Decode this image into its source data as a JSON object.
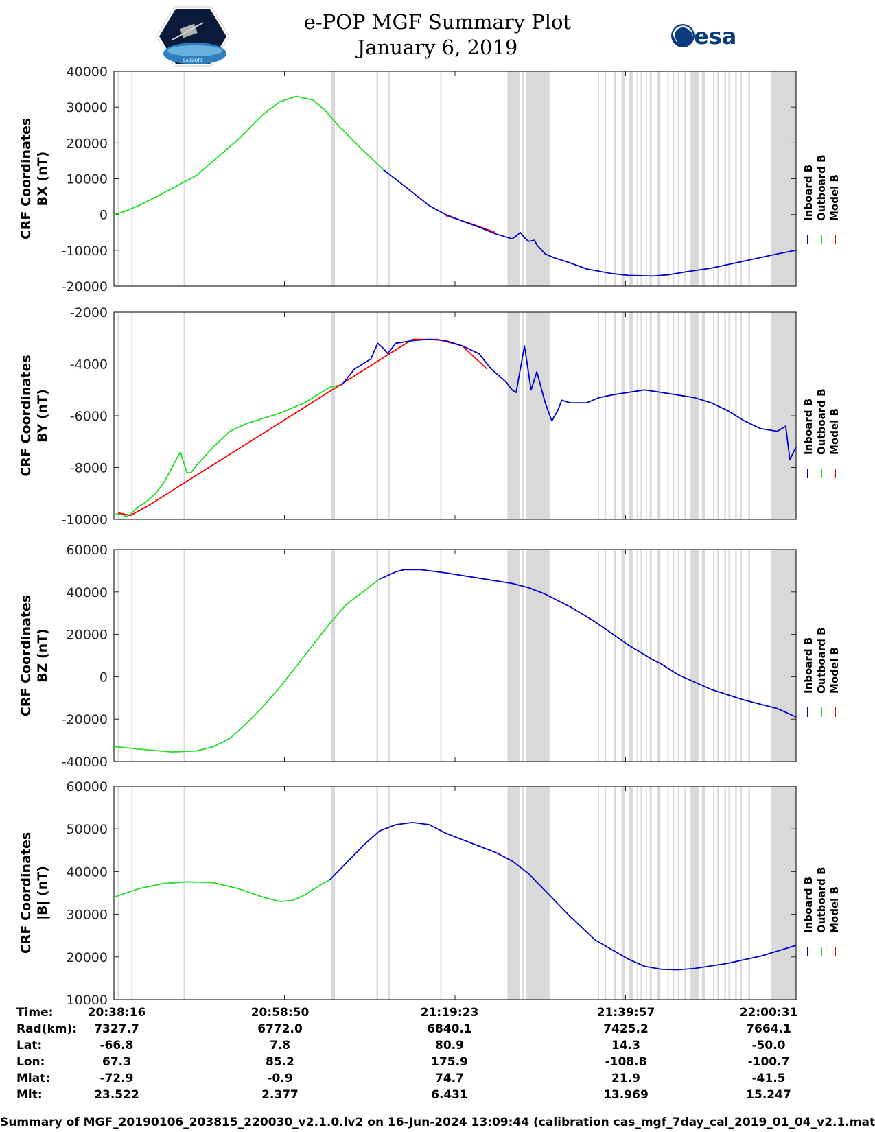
{
  "header": {
    "title_line1": "e-POP MGF Summary Plot",
    "title_line2": "January 6, 2019",
    "logo_left_text": "CASSIOPE",
    "logo_right_text": "esa"
  },
  "legend": [
    "Inboard B",
    "Outboard B",
    "Model B"
  ],
  "colors": {
    "inboard": "#0000cc",
    "outboard": "#22dd22",
    "model": "#ff0000",
    "gap": "#d9d9d9"
  },
  "chart_data": [
    {
      "type": "line",
      "ylabel_line1": "CRF Coordinates",
      "ylabel_line2": "BX (nT)",
      "ylim": [
        -20000,
        40000
      ],
      "yticks": [
        "40000",
        "30000",
        "20000",
        "10000",
        "0",
        "-10000",
        "-20000"
      ],
      "xlim_minutes": [
        0,
        82.25
      ],
      "series": [
        {
          "name": "Outboard B",
          "x": [
            0,
            1,
            3,
            5,
            8,
            10,
            12,
            15,
            18,
            20,
            22,
            24,
            25.5,
            27,
            30,
            32.5
          ],
          "y": [
            0,
            600,
            2500,
            4800,
            8500,
            11000,
            15000,
            21000,
            28000,
            31500,
            33000,
            32000,
            29000,
            25000,
            18000,
            12500
          ]
        },
        {
          "name": "Inboard B",
          "x": [
            32.5,
            35,
            38,
            40,
            42,
            44,
            46,
            48,
            48.5,
            49,
            49.5,
            50,
            50.7,
            51,
            52,
            53,
            55,
            57,
            60,
            62,
            65,
            67,
            69,
            72,
            75,
            78,
            80,
            82.25
          ],
          "y": [
            12500,
            8000,
            2500,
            0,
            -1800,
            -3500,
            -5400,
            -6800,
            -6000,
            -5000,
            -6500,
            -7500,
            -7200,
            -8500,
            -11000,
            -12000,
            -13500,
            -15200,
            -16500,
            -17000,
            -17200,
            -16800,
            -16000,
            -15000,
            -13500,
            -12000,
            -11000,
            -10000
          ]
        },
        {
          "name": "Model B",
          "x": [
            40,
            43,
            46
          ],
          "y": [
            -300,
            -2500,
            -5000
          ]
        }
      ]
    },
    {
      "type": "line",
      "ylabel_line1": "CRF Coordinates",
      "ylabel_line2": "BY (nT)",
      "ylim": [
        -10000,
        -2000
      ],
      "yticks": [
        "-2000",
        "-4000",
        "-6000",
        "-8000",
        "-10000"
      ],
      "xlim_minutes": [
        0,
        82.25
      ],
      "series": [
        {
          "name": "Outboard B",
          "x": [
            0,
            1,
            1.5,
            2,
            3,
            4,
            5,
            6,
            7,
            8,
            8.8,
            9.3,
            10,
            12,
            14,
            16,
            18,
            20,
            23,
            26,
            27.5
          ],
          "y": [
            -9800,
            -9800,
            -9900,
            -9800,
            -9500,
            -9300,
            -9000,
            -8600,
            -8000,
            -7400,
            -8200,
            -8200,
            -7900,
            -7200,
            -6600,
            -6300,
            -6100,
            -5900,
            -5500,
            -4900,
            -4800
          ]
        },
        {
          "name": "Inboard B",
          "x": [
            27.5,
            29,
            31,
            31.8,
            32.5,
            33,
            34,
            36,
            38,
            40,
            42,
            44,
            45.5,
            47.3,
            48,
            48.5,
            49.5,
            50.3,
            51,
            52,
            52.8,
            53.5,
            54,
            55,
            57,
            58.5,
            60,
            62,
            64,
            66,
            68,
            70,
            72,
            74,
            76,
            78,
            80,
            81,
            81.5,
            82.25
          ],
          "y": [
            -4800,
            -4200,
            -3800,
            -3200,
            -3400,
            -3600,
            -3200,
            -3100,
            -3050,
            -3100,
            -3300,
            -3600,
            -4200,
            -4700,
            -5000,
            -5100,
            -3300,
            -5000,
            -4300,
            -5500,
            -6200,
            -5800,
            -5400,
            -5500,
            -5500,
            -5300,
            -5200,
            -5100,
            -5000,
            -5100,
            -5200,
            -5300,
            -5500,
            -5800,
            -6200,
            -6500,
            -6600,
            -6400,
            -7700,
            -7200
          ]
        },
        {
          "name": "Model B",
          "x": [
            0.5,
            2,
            4,
            36,
            39,
            42,
            45
          ],
          "y": [
            -9750,
            -9850,
            -9500,
            -3050,
            -3050,
            -3300,
            -4200
          ]
        }
      ]
    },
    {
      "type": "line",
      "ylabel_line1": "CRF Coordinates",
      "ylabel_line2": "BZ (nT)",
      "ylim": [
        -40000,
        60000
      ],
      "yticks": [
        "60000",
        "40000",
        "20000",
        "0",
        "-20000",
        "-40000"
      ],
      "xlim_minutes": [
        0,
        82.25
      ],
      "series": [
        {
          "name": "Outboard B",
          "x": [
            0,
            4,
            7,
            10,
            12,
            14,
            16,
            18,
            20,
            22,
            24,
            26,
            28,
            30,
            32
          ],
          "y": [
            -33000,
            -34500,
            -35500,
            -35000,
            -33000,
            -29000,
            -22000,
            -14000,
            -5000,
            5000,
            15000,
            25000,
            34000,
            40000,
            46000
          ]
        },
        {
          "name": "Inboard B",
          "x": [
            32,
            34,
            35,
            37,
            40,
            44,
            48,
            50,
            52,
            55,
            58,
            62,
            65,
            66,
            68,
            72,
            76,
            80,
            82.25
          ],
          "y": [
            46000,
            49500,
            50500,
            50500,
            49000,
            46500,
            44000,
            42000,
            39000,
            33000,
            26000,
            15000,
            8000,
            6000,
            1000,
            -6000,
            -11000,
            -15000,
            -19000
          ]
        }
      ]
    },
    {
      "type": "line",
      "ylabel_line1": "CRF Coordinates",
      "ylabel_line2": "|B| (nT)",
      "ylim": [
        10000,
        60000
      ],
      "yticks": [
        "60000",
        "50000",
        "40000",
        "30000",
        "20000",
        "10000"
      ],
      "xlim_minutes": [
        0,
        82.25
      ],
      "series": [
        {
          "name": "Outboard B",
          "x": [
            0,
            3,
            6,
            9,
            12,
            15,
            18,
            20,
            21.5,
            23,
            24,
            25,
            26
          ],
          "y": [
            34000,
            36000,
            37200,
            37600,
            37400,
            36000,
            34000,
            33000,
            33200,
            34500,
            35800,
            37000,
            38000
          ]
        },
        {
          "name": "Inboard B",
          "x": [
            26,
            28,
            30,
            32,
            34,
            36,
            38,
            40,
            42,
            44,
            46,
            48,
            50,
            52,
            55,
            58,
            62,
            64,
            66,
            68,
            70,
            74,
            78,
            82.25
          ],
          "y": [
            38000,
            42000,
            46000,
            49500,
            51000,
            51500,
            51000,
            49000,
            47500,
            46000,
            44500,
            42500,
            39500,
            35500,
            29500,
            24000,
            19500,
            17800,
            17100,
            17000,
            17300,
            18500,
            20200,
            22700
          ]
        }
      ]
    }
  ],
  "gaps_minutes": [
    [
      0.45,
      0.6
    ],
    [
      2.1,
      2.25
    ],
    [
      8.4,
      8.6
    ],
    [
      26.15,
      26.65
    ],
    [
      31.65,
      31.85
    ],
    [
      33.1,
      33.25
    ],
    [
      39.35,
      39.5
    ],
    [
      47.45,
      48.95
    ],
    [
      49.25,
      49.4
    ],
    [
      49.7,
      52.55
    ],
    [
      58.35,
      58.5
    ],
    [
      59.15,
      59.35
    ],
    [
      60.3,
      60.55
    ],
    [
      61.2,
      61.55
    ],
    [
      62.15,
      62.55
    ],
    [
      63.05,
      63.2
    ],
    [
      63.5,
      63.65
    ],
    [
      64.1,
      64.25
    ],
    [
      64.6,
      64.85
    ],
    [
      65.5,
      65.9
    ],
    [
      66.75,
      66.9
    ],
    [
      67.4,
      67.55
    ],
    [
      68.0,
      68.15
    ],
    [
      68.8,
      69.0
    ],
    [
      69.5,
      70.5
    ],
    [
      70.9,
      71.3
    ],
    [
      72.25,
      72.4
    ],
    [
      72.75,
      72.9
    ],
    [
      73.6,
      73.8
    ],
    [
      74.1,
      74.25
    ],
    [
      74.9,
      75.1
    ],
    [
      75.5,
      75.7
    ],
    [
      76.5,
      76.7
    ],
    [
      79.2,
      82.25
    ]
  ],
  "time_axis": {
    "labels": [
      "Time:",
      "Rad(km):",
      "Lat:",
      "Lon:",
      "Mlat:",
      "Mlt:"
    ],
    "columns": [
      [
        "20:38:16",
        "7327.7",
        "-66.8",
        "67.3",
        "-72.9",
        "23.522"
      ],
      [
        "20:58:50",
        "6772.0",
        "7.8",
        "85.2",
        "-0.9",
        "2.377"
      ],
      [
        "21:19:23",
        "6840.1",
        "80.9",
        "175.9",
        "74.7",
        "6.431"
      ],
      [
        "21:39:57",
        "7425.2",
        "14.3",
        "-108.8",
        "21.9",
        "13.969"
      ],
      [
        "22:00:31",
        "7664.1",
        "-50.0",
        "-100.7",
        "-41.5",
        "15.247"
      ]
    ]
  },
  "footer": "Summary of MGF_20190106_203815_220030_v2.1.0.lv2 on 16-Jun-2024 13:09:44 (calibration cas_mgf_7day_cal_2019_01_04_v2.1.mat )"
}
